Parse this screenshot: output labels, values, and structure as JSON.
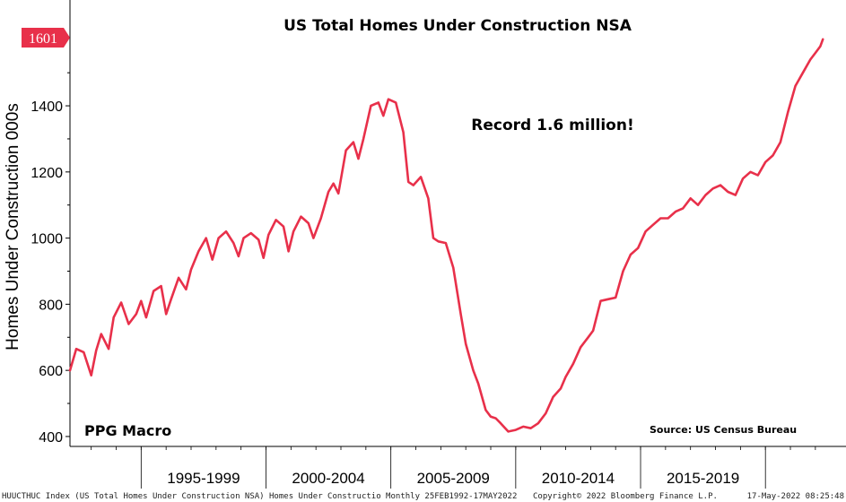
{
  "chart_data": {
    "type": "line",
    "title": "US Total Homes Under Construction NSA",
    "ylabel": "Homes Under Construction 000s",
    "xlabel": "",
    "ylim": [
      370,
      1720
    ],
    "xlim": [
      1992.15,
      2022.4
    ],
    "yticks": [
      400,
      600,
      800,
      1000,
      1200,
      1400
    ],
    "x_period_labels": [
      "1995-1999",
      "2000-2004",
      "2005-2009",
      "2010-2014",
      "2015-2019"
    ],
    "x_period_bounds": [
      1995,
      2000,
      2005,
      2010,
      2015,
      2020
    ],
    "grid": false,
    "legend": "none",
    "line_color": "#e8304a",
    "annotation": "Record 1.6 million!",
    "brand": "PPG Macro",
    "source": "Source: US Census Bureau",
    "last_value_label": "1601",
    "series": [
      {
        "x": [
          1992.15,
          1992.4,
          1992.7,
          1993.0,
          1993.2,
          1993.4,
          1993.7,
          1993.9,
          1994.2,
          1994.5,
          1994.8,
          1995.0,
          1995.2,
          1995.5,
          1995.8,
          1996.0,
          1996.2,
          1996.5,
          1996.8,
          1997.0,
          1997.3,
          1997.6,
          1997.85,
          1998.1,
          1998.4,
          1998.7,
          1998.9,
          1999.1,
          1999.4,
          1999.7,
          1999.9,
          2000.1,
          2000.4,
          2000.7,
          2000.9,
          2001.1,
          2001.4,
          2001.7,
          2001.9,
          2002.2,
          2002.5,
          2002.7,
          2002.9,
          2003.2,
          2003.5,
          2003.7,
          2003.9,
          2004.2,
          2004.5,
          2004.7,
          2004.9,
          2005.2,
          2005.5,
          2005.7,
          2005.9,
          2006.2,
          2006.5,
          2006.7,
          2006.9,
          2007.2,
          2007.5,
          2007.8,
          2008.0,
          2008.3,
          2008.5,
          2008.8,
          2009.0,
          2009.2,
          2009.4,
          2009.7,
          2010.0,
          2010.3,
          2010.6,
          2010.9,
          2011.2,
          2011.5,
          2011.8,
          2012.0,
          2012.3,
          2012.6,
          2012.9,
          2013.1,
          2013.4,
          2013.7,
          2014.0,
          2014.3,
          2014.6,
          2014.9,
          2015.2,
          2015.5,
          2015.8,
          2016.1,
          2016.4,
          2016.7,
          2017.0,
          2017.3,
          2017.6,
          2017.9,
          2018.2,
          2018.5,
          2018.8,
          2019.1,
          2019.4,
          2019.7,
          2020.0,
          2020.3,
          2020.6,
          2020.9,
          2021.2,
          2021.5,
          2021.8,
          2022.0,
          2022.2,
          2022.3
        ],
        "y": [
          600,
          665,
          655,
          585,
          660,
          710,
          665,
          760,
          805,
          740,
          770,
          810,
          760,
          840,
          855,
          770,
          815,
          880,
          845,
          905,
          960,
          1000,
          935,
          1000,
          1020,
          985,
          945,
          1000,
          1015,
          995,
          940,
          1010,
          1055,
          1035,
          960,
          1020,
          1065,
          1045,
          1000,
          1060,
          1140,
          1165,
          1135,
          1265,
          1290,
          1240,
          1300,
          1400,
          1410,
          1370,
          1420,
          1410,
          1320,
          1170,
          1160,
          1185,
          1120,
          1000,
          990,
          985,
          910,
          770,
          680,
          600,
          560,
          480,
          460,
          455,
          440,
          415,
          420,
          430,
          425,
          440,
          470,
          520,
          545,
          580,
          620,
          670,
          700,
          720,
          810,
          815,
          820,
          900,
          950,
          970,
          1020,
          1040,
          1060,
          1060,
          1080,
          1090,
          1120,
          1100,
          1130,
          1150,
          1160,
          1140,
          1130,
          1180,
          1200,
          1190,
          1230,
          1250,
          1290,
          1380,
          1460,
          1500,
          1540,
          1560,
          1580,
          1601
        ]
      }
    ]
  },
  "footer": {
    "left": "HUUCTHUC Index (US Total Homes Under Construction NSA) Homes Under Constructio  Monthly 25FEB1992-17MAY2022",
    "center": "Copyright© 2022 Bloomberg Finance L.P.",
    "right": "17-May-2022 08:25:48"
  }
}
